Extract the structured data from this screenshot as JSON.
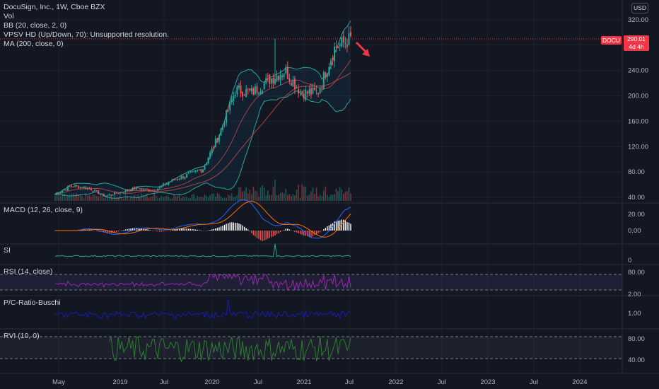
{
  "header": {
    "title": "DocuSign, Inc., 1W, Cboe BZX",
    "indicators": [
      "Vol",
      "BB (20, close, 2, 0)",
      "VPSV HD (Up/Down, 70): Unsupported resolution.",
      "MA (200, close, 0)"
    ]
  },
  "price_axis": {
    "currency": "USD",
    "symbol_tag": "DOCU",
    "last_price": "290.01",
    "countdown": "4d 4h",
    "tag_color": "#f23645",
    "up_color": "#26a69a",
    "down_color": "#ef5350"
  },
  "panes": {
    "macd": {
      "label": "MACD (12, 26, close, 9)",
      "ticks": [
        "20.00",
        "0.00"
      ]
    },
    "si": {
      "label": "SI",
      "ticks": [
        "0"
      ]
    },
    "rsi": {
      "label": "RSI (14, close)",
      "ticks": [
        "80.00",
        "2.00"
      ]
    },
    "pc": {
      "label": "P/C-Ratio-Buschi",
      "ticks": [
        "1.00"
      ]
    },
    "rvi": {
      "label": "RVI (10, 0)",
      "ticks": [
        "80.00",
        "40.00"
      ]
    }
  },
  "chart_data": [
    {
      "type": "candlestick",
      "title": "DocuSign, Inc., 1W, Cboe BZX",
      "y_ticks": [
        "320.00",
        "280.00",
        "240.00",
        "200.00",
        "160.00",
        "120.00",
        "80.00",
        "40.00"
      ],
      "ylim": [
        37,
        325
      ],
      "x_tick_labels": [
        "May",
        "2019",
        "Jul",
        "2020",
        "Jul",
        "2021",
        "Jul",
        "2022",
        "Jul",
        "2023",
        "Jul",
        "2024"
      ],
      "last_value": 290.01,
      "series_approx_close": [
        {
          "date": "2018-05",
          "close": 45
        },
        {
          "date": "2018-07",
          "close": 58
        },
        {
          "date": "2018-09",
          "close": 55
        },
        {
          "date": "2018-11",
          "close": 42
        },
        {
          "date": "2019-01",
          "close": 48
        },
        {
          "date": "2019-04",
          "close": 55
        },
        {
          "date": "2019-07",
          "close": 50
        },
        {
          "date": "2019-10",
          "close": 65
        },
        {
          "date": "2020-01",
          "close": 75
        },
        {
          "date": "2020-03",
          "close": 85
        },
        {
          "date": "2020-05",
          "close": 140
        },
        {
          "date": "2020-07",
          "close": 210
        },
        {
          "date": "2020-09",
          "close": 205
        },
        {
          "date": "2020-11",
          "close": 225
        },
        {
          "date": "2021-01",
          "close": 240
        },
        {
          "date": "2021-03",
          "close": 205
        },
        {
          "date": "2021-05",
          "close": 205
        },
        {
          "date": "2021-06",
          "close": 275
        },
        {
          "date": "2021-07",
          "close": 290
        }
      ]
    }
  ]
}
